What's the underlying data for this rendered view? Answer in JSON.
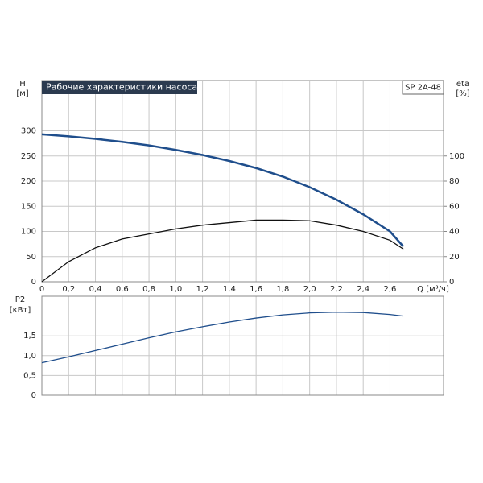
{
  "chart_data": [
    {
      "type": "line",
      "title": "Рабочие характеристики насоса",
      "model": "SP 2A-48",
      "xlabel": "Q [м³/ч]",
      "ylabel": "H",
      "yunit": "[м]",
      "y2label": "eta",
      "y2unit": "[%]",
      "x": [
        0,
        0.2,
        0.4,
        0.6,
        0.8,
        1.0,
        1.2,
        1.4,
        1.6,
        1.8,
        2.0,
        2.2,
        2.4,
        2.6,
        2.7
      ],
      "series": [
        {
          "name": "H",
          "color": "#1f4e8c",
          "values": [
            293,
            289,
            284,
            278,
            271,
            262,
            252,
            240,
            226,
            209,
            188,
            163,
            134,
            100,
            70
          ]
        },
        {
          "name": "eta",
          "color": "#111111",
          "axis": "y2",
          "values": [
            0,
            16,
            27,
            34,
            38,
            42,
            45,
            47,
            49,
            49,
            48.5,
            45,
            40,
            33,
            26
          ]
        }
      ],
      "xlim": [
        0,
        3
      ],
      "xticks": [
        0,
        {
          "value": 0.2,
          "label": "0,2"
        },
        {
          "value": 0.4,
          "label": "0,4"
        },
        {
          "value": 0.6,
          "label": "0,6"
        },
        {
          "value": 0.8,
          "label": "0,8"
        },
        {
          "value": 1.0,
          "label": "1,0"
        },
        {
          "value": 1.2,
          "label": "1,2"
        },
        {
          "value": 1.4,
          "label": "1,4"
        },
        {
          "value": 1.6,
          "label": "1,6"
        },
        {
          "value": 1.8,
          "label": "1,8"
        },
        {
          "value": 2.0,
          "label": "2,0"
        },
        {
          "value": 2.2,
          "label": "2,2"
        },
        {
          "value": 2.4,
          "label": "2,4"
        },
        {
          "value": 2.6,
          "label": "2,6"
        }
      ],
      "ylim": [
        0,
        400
      ],
      "yticks": [
        0,
        50,
        100,
        150,
        200,
        250,
        300
      ],
      "y2lim": [
        0,
        160
      ],
      "y2ticks": [
        0,
        20,
        40,
        60,
        80,
        100
      ],
      "grid": true
    },
    {
      "type": "line",
      "ylabel": "P2",
      "yunit": "[кВт]",
      "x": [
        0,
        0.2,
        0.4,
        0.6,
        0.8,
        1.0,
        1.2,
        1.4,
        1.6,
        1.8,
        2.0,
        2.2,
        2.4,
        2.6,
        2.7
      ],
      "series": [
        {
          "name": "P2",
          "color": "#1f4e8c",
          "values": [
            0.82,
            0.97,
            1.13,
            1.29,
            1.45,
            1.6,
            1.73,
            1.85,
            1.95,
            2.03,
            2.08,
            2.1,
            2.09,
            2.04,
            2.0
          ]
        }
      ],
      "xlim": [
        0,
        3
      ],
      "ylim": [
        0,
        2.5
      ],
      "yticks": [
        0,
        {
          "value": 0.5,
          "label": "0,5"
        },
        {
          "value": 1.0,
          "label": "1,0"
        },
        {
          "value": 1.5,
          "label": "1,5"
        }
      ],
      "grid": true
    }
  ]
}
